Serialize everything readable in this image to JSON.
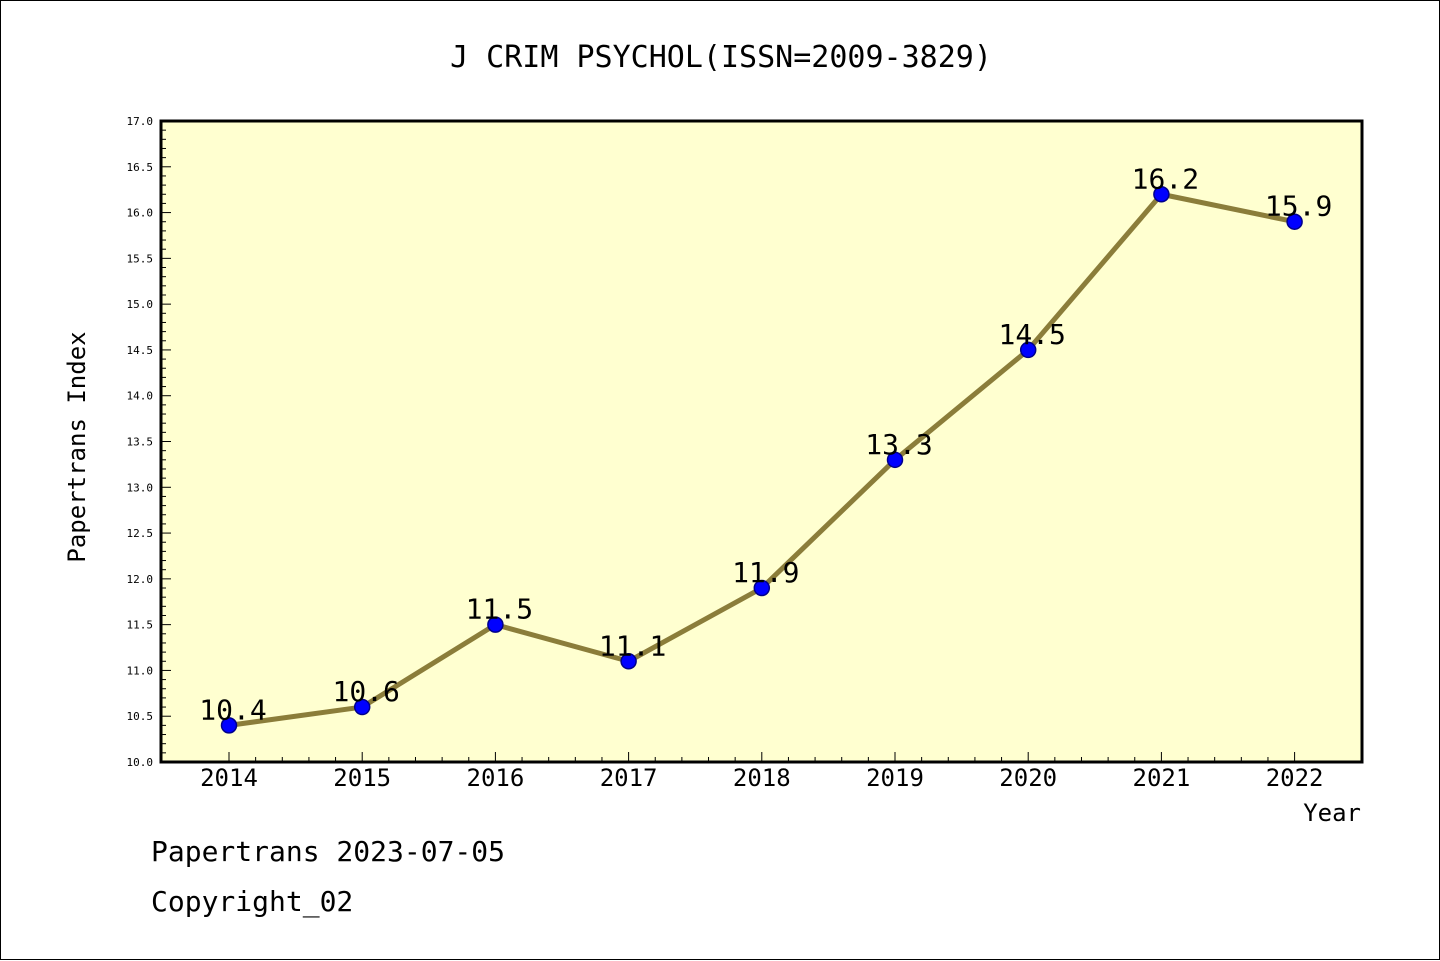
{
  "chart_data": {
    "type": "line",
    "title": "J CRIM PSYCHOL(ISSN=2009-3829)",
    "xlabel": "Year",
    "ylabel": "Papertrans Index",
    "categories": [
      "2014",
      "2015",
      "2016",
      "2017",
      "2018",
      "2019",
      "2020",
      "2021",
      "2022"
    ],
    "series": [
      {
        "values": [
          10.4,
          10.6,
          11.5,
          11.1,
          11.9,
          13.3,
          14.5,
          16.2,
          15.9
        ],
        "labels": [
          "10.4",
          "10.6",
          "11.5",
          "11.1",
          "11.9",
          "13.3",
          "14.5",
          "16.2",
          "15.9"
        ]
      }
    ],
    "ylim": [
      10.0,
      17.0
    ],
    "yticks": [
      "10.0",
      "10.5",
      "11.0",
      "11.5",
      "12.0",
      "12.5",
      "13.0",
      "13.5",
      "14.0",
      "14.5",
      "15.0",
      "15.5",
      "16.0",
      "16.5",
      "17.0"
    ],
    "grid": false,
    "colors": {
      "plot_background": "#ffffd0",
      "line": "#8b7d3a",
      "marker": "#0000ff",
      "marker_edge": "#00008b"
    }
  },
  "footer": {
    "line1": "Papertrans 2023-07-05",
    "line2": "Copyright_02"
  }
}
